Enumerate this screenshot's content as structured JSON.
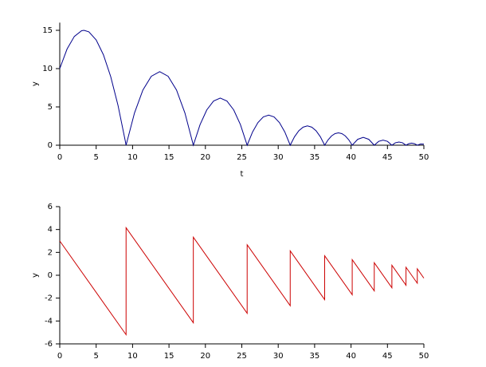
{
  "chart_data": [
    {
      "type": "line",
      "xlabel": "t",
      "ylabel": "y",
      "x": [
        0,
        1,
        2,
        3,
        3.33,
        4,
        5,
        6,
        7,
        8,
        9,
        9.107,
        10.262,
        11.416,
        12.571,
        13.726,
        14.88,
        16.035,
        17.19,
        18.344,
        19.268,
        20.192,
        21.116,
        22.04,
        22.963,
        23.887,
        24.811,
        25.735,
        26.474,
        27.213,
        27.952,
        28.691,
        29.43,
        30.169,
        30.909,
        31.648,
        32.239,
        32.831,
        33.422,
        34.013,
        34.604,
        35.196,
        35.787,
        36.378,
        36.851,
        37.324,
        37.797,
        38.27,
        38.743,
        39.216,
        39.689,
        40.162,
        40.919,
        41.676,
        42.432,
        43.189,
        43.795,
        44.4,
        45.006,
        45.611,
        46.095,
        46.58,
        47.064,
        47.548,
        47.936,
        48.323,
        48.711,
        49.098,
        49.549,
        50
      ],
      "series": [
        {
          "color": "#00008b",
          "values": [
            10,
            12.55,
            14.2,
            14.95,
            15,
            14.8,
            13.75,
            11.8,
            8.95,
            5.2,
            0.55,
            0,
            4.2,
            7.2,
            9,
            9.6,
            9,
            7.2,
            4.2,
            0,
            2.69,
            4.61,
            5.76,
            6.15,
            5.76,
            4.61,
            2.69,
            0,
            1.72,
            2.95,
            3.69,
            3.93,
            3.69,
            2.95,
            1.72,
            0,
            1.1,
            1.89,
            2.36,
            2.52,
            2.36,
            1.89,
            1.1,
            0,
            0.7,
            1.21,
            1.51,
            1.61,
            1.51,
            1.21,
            0.7,
            0,
            0.77,
            1.03,
            0.77,
            0,
            0.5,
            0.66,
            0.5,
            0,
            0.32,
            0.42,
            0.32,
            0,
            0.2,
            0.27,
            0.2,
            0,
            0.16,
            0.14
          ]
        }
      ],
      "xlim": [
        0,
        50
      ],
      "xticks": [
        0,
        5,
        10,
        15,
        20,
        25,
        30,
        35,
        40,
        45,
        50
      ],
      "ylim": [
        0,
        16
      ],
      "yticks": [
        0,
        5,
        10,
        15
      ]
    },
    {
      "type": "line",
      "ylabel": "y",
      "x": [
        0,
        9.107,
        9.107,
        18.344,
        18.344,
        25.735,
        25.735,
        31.648,
        31.648,
        36.378,
        36.378,
        40.162,
        40.162,
        43.189,
        43.189,
        45.611,
        45.611,
        47.548,
        47.548,
        49.098,
        49.098,
        50
      ],
      "series": [
        {
          "color": "#cc0000",
          "values": [
            3,
            -5.196,
            4.157,
            -4.157,
            3.326,
            -3.326,
            2.661,
            -2.661,
            2.128,
            -2.128,
            1.703,
            -1.703,
            1.362,
            -1.362,
            1.09,
            -1.09,
            0.872,
            -0.872,
            0.697,
            -0.697,
            0.558,
            -0.254
          ]
        }
      ],
      "xlim": [
        0,
        50
      ],
      "xticks": [
        0,
        5,
        10,
        15,
        20,
        25,
        30,
        35,
        40,
        45,
        50
      ],
      "ylim": [
        -6,
        6
      ],
      "yticks": [
        -6,
        -4,
        -2,
        0,
        2,
        4,
        6
      ]
    }
  ]
}
